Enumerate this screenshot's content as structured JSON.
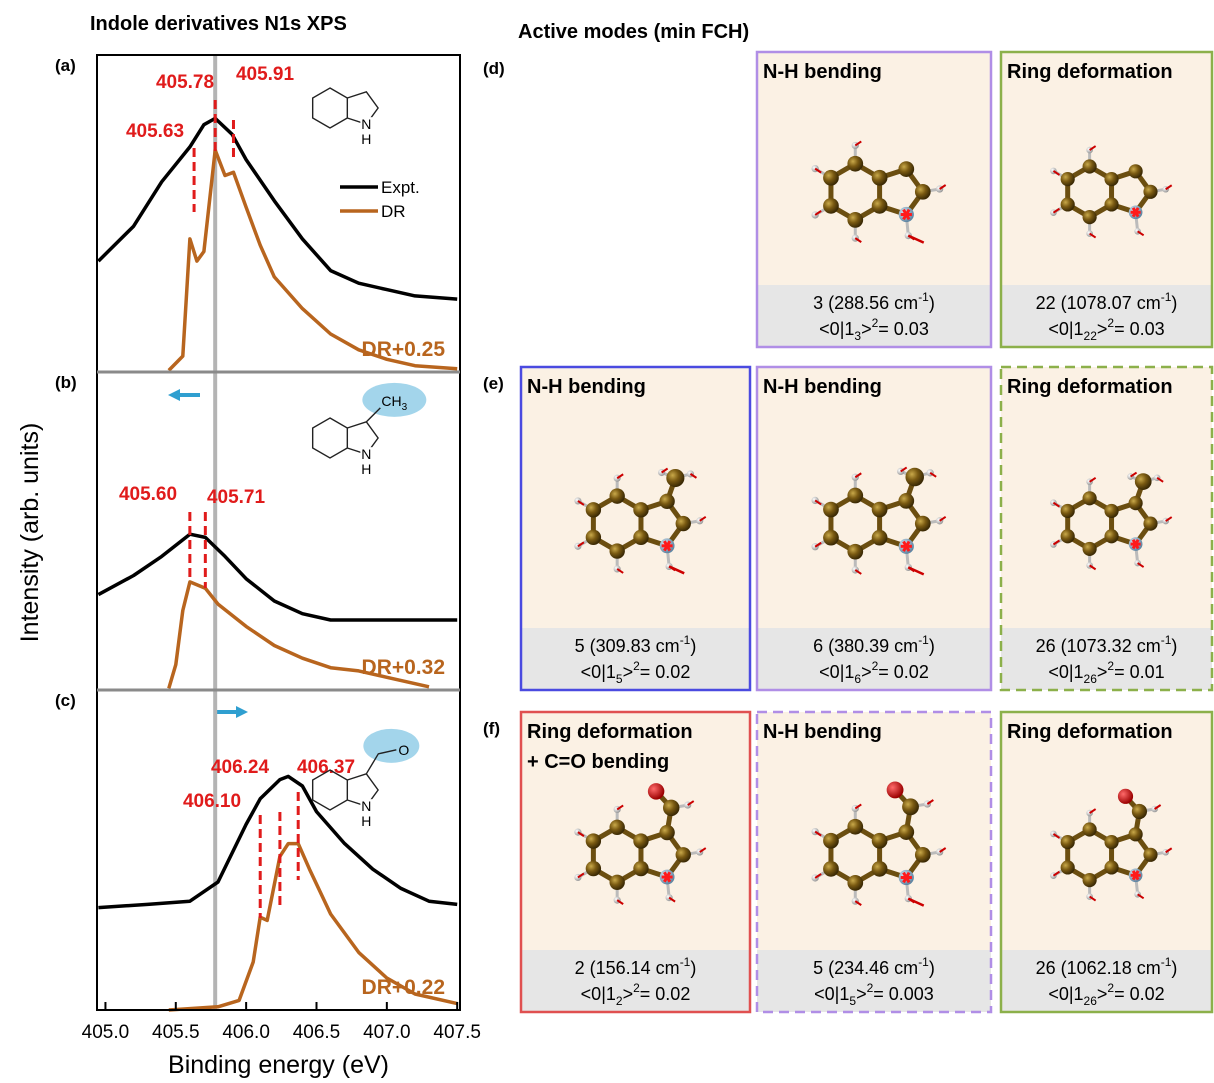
{
  "chart_data": [
    {
      "type": "line",
      "title": "Indole derivatives N1s XPS",
      "panel_label": "(a)",
      "xlim": [
        404.94,
        407.52
      ],
      "ylim": [
        0,
        1
      ],
      "vline": 405.78,
      "legend": true,
      "offset_label": "DR+0.25",
      "peaks": [
        {
          "value": 405.63,
          "label": "405.63"
        },
        {
          "value": 405.78,
          "label": "405.78"
        },
        {
          "value": 405.91,
          "label": "405.91"
        }
      ],
      "structure_labels": [
        "N",
        "H"
      ],
      "series": [
        {
          "name": "Expt.",
          "color": "#000000",
          "x": [
            404.95,
            405.2,
            405.4,
            405.6,
            405.7,
            405.78,
            405.9,
            406.0,
            406.2,
            406.4,
            406.6,
            406.8,
            407.0,
            407.2,
            407.5
          ],
          "values": [
            0.35,
            0.46,
            0.6,
            0.71,
            0.78,
            0.8,
            0.75,
            0.67,
            0.54,
            0.42,
            0.32,
            0.28,
            0.26,
            0.24,
            0.23
          ]
        },
        {
          "name": "DR",
          "color": "#b8651e",
          "x": [
            405.45,
            405.55,
            405.6,
            405.65,
            405.7,
            405.78,
            405.85,
            405.91,
            406.0,
            406.1,
            406.2,
            406.4,
            406.6,
            406.8,
            407.0,
            407.2,
            407.5
          ],
          "values": [
            0.005,
            0.05,
            0.42,
            0.35,
            0.38,
            0.7,
            0.62,
            0.63,
            0.52,
            0.4,
            0.3,
            0.2,
            0.12,
            0.07,
            0.04,
            0.02,
            0.01
          ]
        }
      ]
    },
    {
      "type": "line",
      "panel_label": "(b)",
      "ylabel": "Intensity (arb. units)",
      "xlim": [
        404.94,
        407.52
      ],
      "ylim": [
        0,
        1
      ],
      "vline": 405.78,
      "offset_label": "DR+0.32",
      "peaks": [
        {
          "value": 405.6,
          "label": "405.60"
        },
        {
          "value": 405.71,
          "label": "405.71"
        }
      ],
      "structure_labels": [
        "N",
        "H",
        "CH",
        "3"
      ],
      "series": [
        {
          "name": "Expt.",
          "color": "#000000",
          "x": [
            404.95,
            405.2,
            405.4,
            405.6,
            405.71,
            405.85,
            406.0,
            406.2,
            406.4,
            406.6,
            407.0,
            407.5
          ],
          "values": [
            0.3,
            0.36,
            0.42,
            0.49,
            0.48,
            0.42,
            0.35,
            0.28,
            0.24,
            0.22,
            0.22,
            0.22
          ]
        },
        {
          "name": "DR",
          "color": "#b8651e",
          "x": [
            405.45,
            405.5,
            405.55,
            405.6,
            405.71,
            405.8,
            406.0,
            406.2,
            406.4,
            406.6,
            406.8,
            407.0,
            407.3
          ],
          "values": [
            0.005,
            0.08,
            0.25,
            0.34,
            0.32,
            0.27,
            0.2,
            0.14,
            0.1,
            0.07,
            0.06,
            0.04,
            0.01
          ]
        }
      ]
    },
    {
      "type": "line",
      "panel_label": "(c)",
      "xlabel": "Binding energy (eV)",
      "xlim": [
        404.94,
        407.52
      ],
      "ylim": [
        0,
        1
      ],
      "vline": 405.78,
      "offset_label": "DR+0.22",
      "xticks": [
        {
          "value": 405,
          "label": "405.0"
        },
        {
          "value": 405.5,
          "label": "405.5"
        },
        {
          "value": 406,
          "label": "406.0"
        },
        {
          "value": 406.5,
          "label": "406.5"
        },
        {
          "value": 407,
          "label": "407.0"
        },
        {
          "value": 407.5,
          "label": "407.5"
        }
      ],
      "peaks": [
        {
          "value": 406.1,
          "label": "406.10"
        },
        {
          "value": 406.24,
          "label": "406.24"
        },
        {
          "value": 406.37,
          "label": "406.37"
        }
      ],
      "structure_labels": [
        "N",
        "H",
        "O"
      ],
      "series": [
        {
          "name": "Expt.",
          "color": "#000000",
          "x": [
            404.95,
            405.3,
            405.6,
            405.8,
            406.0,
            406.1,
            406.24,
            406.3,
            406.4,
            406.5,
            406.7,
            406.9,
            407.1,
            407.3,
            407.5
          ],
          "values": [
            0.32,
            0.33,
            0.34,
            0.4,
            0.58,
            0.66,
            0.72,
            0.73,
            0.7,
            0.62,
            0.52,
            0.44,
            0.38,
            0.34,
            0.33
          ]
        },
        {
          "name": "DR",
          "color": "#b8651e",
          "x": [
            405.45,
            405.8,
            405.95,
            406.05,
            406.1,
            406.15,
            406.24,
            406.3,
            406.37,
            406.45,
            406.6,
            406.8,
            407.0,
            407.2,
            407.5
          ],
          "values": [
            0.0,
            0.01,
            0.03,
            0.15,
            0.29,
            0.28,
            0.48,
            0.52,
            0.52,
            0.44,
            0.3,
            0.18,
            0.1,
            0.05,
            0.02
          ]
        }
      ]
    }
  ],
  "modes": {
    "title": "Active modes (min FCH)",
    "rows": [
      {
        "label": "(d)",
        "panels": [
          {
            "title": [
              "N-H bending"
            ],
            "caption1": [
              "3 (288.56 cm",
              "-1",
              ")"
            ],
            "caption2": [
              "<0|1",
              "3",
              ">",
              "2",
              "= 0.03"
            ],
            "border": "#b08ee6",
            "dashed": false
          },
          {
            "title": [
              "Ring deformation"
            ],
            "caption1": [
              "22 (1078.07 cm",
              "-1",
              ")"
            ],
            "caption2": [
              "<0|1",
              "22",
              ">",
              "2",
              "= 0.03"
            ],
            "border": "#8cb04a",
            "dashed": false
          }
        ]
      },
      {
        "label": "(e)",
        "panels": [
          {
            "title": [
              "N-H bending"
            ],
            "caption1": [
              "5 (309.83 cm",
              "-1",
              ")"
            ],
            "caption2": [
              "<0|1",
              "5",
              ">",
              "2",
              "= 0.02"
            ],
            "border": "#4a4ae0",
            "dashed": false
          },
          {
            "title": [
              "N-H bending"
            ],
            "caption1": [
              "6 (380.39 cm",
              "-1",
              ")"
            ],
            "caption2": [
              "<0|1",
              "6",
              ">",
              "2",
              "= 0.02"
            ],
            "border": "#b08ee6",
            "dashed": false
          },
          {
            "title": [
              "Ring deformation"
            ],
            "caption1": [
              "26 (1073.32 cm",
              "-1",
              ")"
            ],
            "caption2": [
              "<0|1",
              "26",
              ">",
              "2",
              "= 0.01"
            ],
            "border": "#8cb04a",
            "dashed": true
          }
        ]
      },
      {
        "label": "(f)",
        "panels": [
          {
            "title": [
              "Ring deformation",
              "+ C=O bending"
            ],
            "caption1": [
              "2 (156.14 cm",
              "-1",
              ")"
            ],
            "caption2": [
              "<0|1",
              "2",
              ">",
              "2",
              "= 0.02"
            ],
            "border": "#e05050",
            "dashed": false
          },
          {
            "title": [
              "N-H bending"
            ],
            "caption1": [
              "5 (234.46 cm",
              "-1",
              ")"
            ],
            "caption2": [
              "<0|1",
              "5",
              ">",
              "2",
              "= 0.003"
            ],
            "border": "#b08ee6",
            "dashed": true
          },
          {
            "title": [
              "Ring deformation"
            ],
            "caption1": [
              "26 (1062.18 cm",
              "-1",
              ")"
            ],
            "caption2": [
              "<0|1",
              "26",
              ">",
              "2",
              "= 0.02"
            ],
            "border": "#8cb04a",
            "dashed": false
          }
        ]
      }
    ]
  }
}
